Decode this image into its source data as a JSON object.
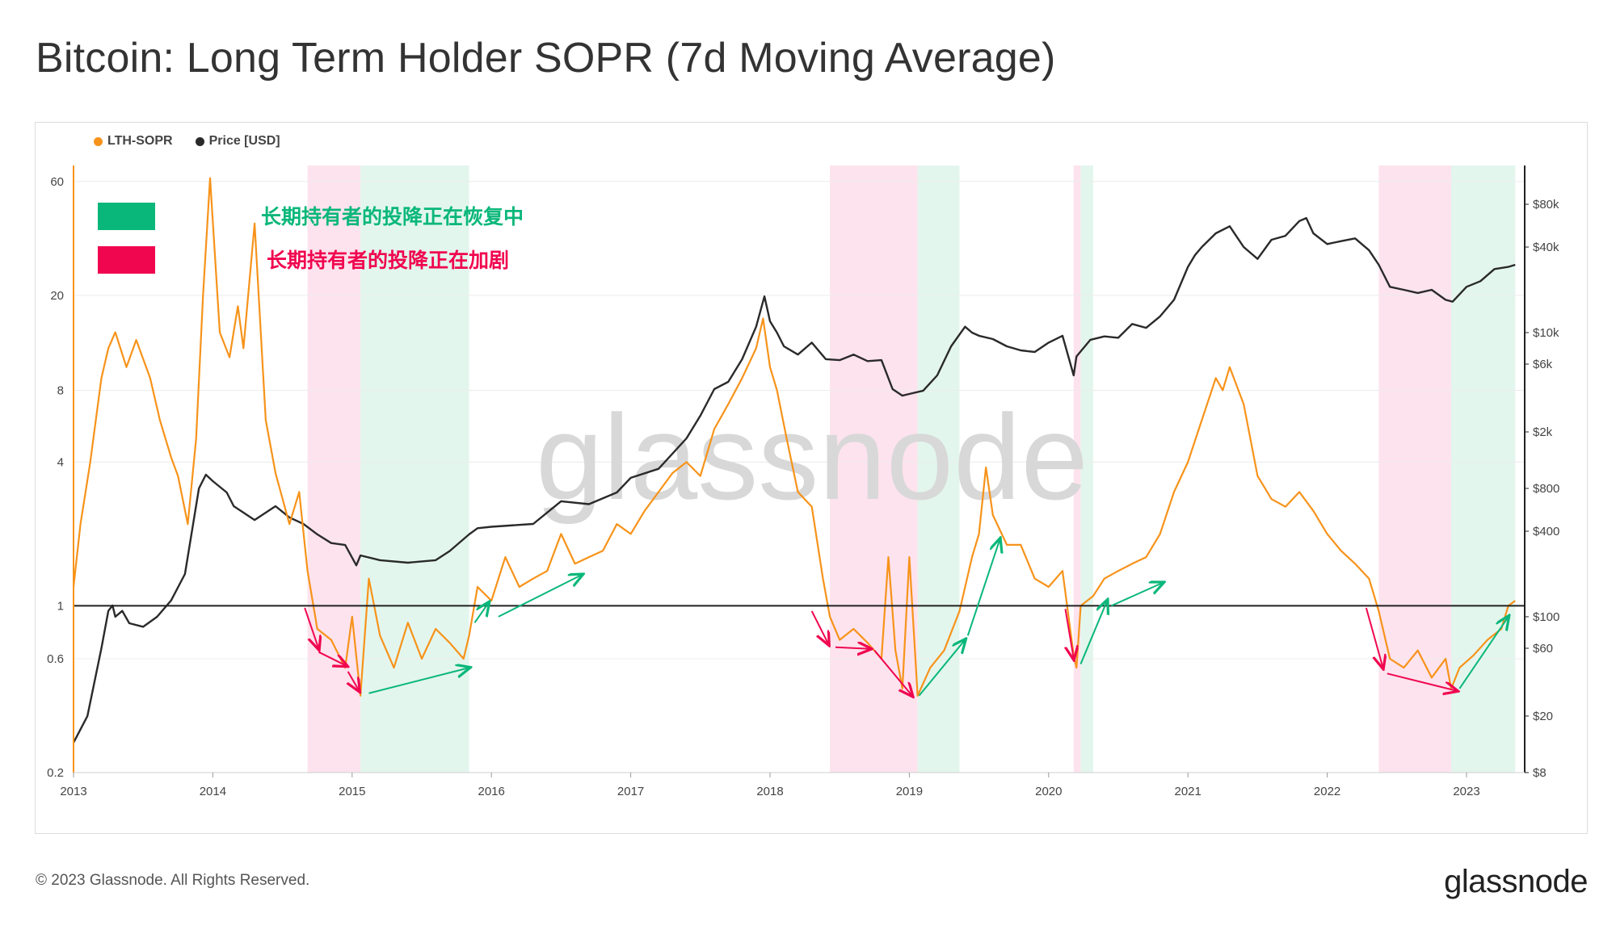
{
  "title": "Bitcoin: Long Term Holder SOPR (7d Moving Average)",
  "footer": "© 2023 Glassnode. All Rights Reserved.",
  "brand": "glassnode",
  "watermark": "glassnode",
  "colors": {
    "sopr": "#f7931a",
    "price": "#2a2a2a",
    "green": "#0ab77a",
    "red": "#f0064f",
    "green_band": "#e3f6ee",
    "red_band": "#fde3ee"
  },
  "annotations": [
    {
      "text": "长期持有者的投降正在恢复中",
      "color": "green"
    },
    {
      "text": "长期持有者的投降正在加剧",
      "color": "red"
    }
  ],
  "chart_data": {
    "type": "line",
    "legend": [
      "LTH-SOPR",
      "Price [USD]"
    ],
    "x_ticks": [
      "2013",
      "2014",
      "2015",
      "2016",
      "2017",
      "2018",
      "2019",
      "2020",
      "2021",
      "2022",
      "2023"
    ],
    "y_left_ticks": [
      "60",
      "20",
      "8",
      "4",
      "1",
      "0.6",
      "0.2"
    ],
    "y_right_ticks": [
      "$80k",
      "$40k",
      "$10k",
      "$6k",
      "$2k",
      "$800",
      "$400",
      "$100",
      "$60",
      "$20",
      "$8"
    ],
    "y_left_scale": "log",
    "y_right_scale": "log",
    "y_left_range": [
      0.2,
      70
    ],
    "y_right_range": [
      8,
      150000
    ],
    "x_range": [
      2013.0,
      2023.35
    ],
    "reference_line": 1,
    "bands": [
      {
        "from": 2014.68,
        "to": 2015.06,
        "kind": "red"
      },
      {
        "from": 2015.06,
        "to": 2015.84,
        "kind": "green"
      },
      {
        "from": 2018.43,
        "to": 2019.06,
        "kind": "red"
      },
      {
        "from": 2019.06,
        "to": 2019.36,
        "kind": "green"
      },
      {
        "from": 2020.18,
        "to": 2020.23,
        "kind": "red"
      },
      {
        "from": 2020.23,
        "to": 2020.32,
        "kind": "green"
      },
      {
        "from": 2022.37,
        "to": 2022.89,
        "kind": "red"
      },
      {
        "from": 2022.89,
        "to": 2023.35,
        "kind": "green"
      }
    ],
    "series": [
      {
        "name": "LTH-SOPR",
        "axis": "left",
        "color": "#f7931a",
        "x": [
          2013.0,
          2013.05,
          2013.12,
          2013.2,
          2013.25,
          2013.3,
          2013.38,
          2013.45,
          2013.55,
          2013.62,
          2013.7,
          2013.75,
          2013.82,
          2013.88,
          2013.93,
          2013.98,
          2014.05,
          2014.12,
          2014.18,
          2014.22,
          2014.3,
          2014.38,
          2014.45,
          2014.55,
          2014.62,
          2014.68,
          2014.75,
          2014.85,
          2014.95,
          2015.0,
          2015.06,
          2015.12,
          2015.2,
          2015.3,
          2015.4,
          2015.5,
          2015.6,
          2015.7,
          2015.8,
          2015.84,
          2015.9,
          2016.0,
          2016.1,
          2016.2,
          2016.3,
          2016.4,
          2016.5,
          2016.6,
          2016.7,
          2016.8,
          2016.9,
          2017.0,
          2017.1,
          2017.2,
          2017.3,
          2017.4,
          2017.5,
          2017.6,
          2017.7,
          2017.8,
          2017.9,
          2017.95,
          2018.0,
          2018.05,
          2018.12,
          2018.2,
          2018.3,
          2018.38,
          2018.43,
          2018.5,
          2018.6,
          2018.7,
          2018.8,
          2018.85,
          2018.9,
          2018.95,
          2019.0,
          2019.06,
          2019.15,
          2019.25,
          2019.36,
          2019.45,
          2019.5,
          2019.55,
          2019.6,
          2019.7,
          2019.8,
          2019.9,
          2020.0,
          2020.1,
          2020.18,
          2020.2,
          2020.23,
          2020.32,
          2020.4,
          2020.5,
          2020.6,
          2020.7,
          2020.8,
          2020.9,
          2021.0,
          2021.1,
          2021.2,
          2021.25,
          2021.3,
          2021.4,
          2021.5,
          2021.6,
          2021.7,
          2021.8,
          2021.9,
          2022.0,
          2022.1,
          2022.2,
          2022.3,
          2022.37,
          2022.45,
          2022.55,
          2022.65,
          2022.75,
          2022.85,
          2022.89,
          2022.95,
          2023.05,
          2023.15,
          2023.25,
          2023.3,
          2023.35
        ],
        "values": [
          1.2,
          2.2,
          4.0,
          9.0,
          12.0,
          14.0,
          10.0,
          13.0,
          9.0,
          6.0,
          4.2,
          3.5,
          2.2,
          5.0,
          20.0,
          62.0,
          14.0,
          11.0,
          18.0,
          12.0,
          40.0,
          6.0,
          3.6,
          2.2,
          3.0,
          1.4,
          0.8,
          0.72,
          0.55,
          0.9,
          0.42,
          1.3,
          0.75,
          0.55,
          0.85,
          0.6,
          0.8,
          0.7,
          0.6,
          0.75,
          1.2,
          1.05,
          1.6,
          1.2,
          1.3,
          1.4,
          2.0,
          1.5,
          1.6,
          1.7,
          2.2,
          2.0,
          2.5,
          3.0,
          3.6,
          4.0,
          3.5,
          5.5,
          7.0,
          9.0,
          12.0,
          16.0,
          10.0,
          8.0,
          5.0,
          3.0,
          2.6,
          1.3,
          0.9,
          0.72,
          0.8,
          0.7,
          0.6,
          1.6,
          0.65,
          0.45,
          1.6,
          0.42,
          0.55,
          0.65,
          0.95,
          1.6,
          2.0,
          3.8,
          2.4,
          1.8,
          1.8,
          1.3,
          1.2,
          1.4,
          0.62,
          0.55,
          1.0,
          1.1,
          1.3,
          1.4,
          1.5,
          1.6,
          2.0,
          3.0,
          4.0,
          6.0,
          9.0,
          8.0,
          10.0,
          7.0,
          3.5,
          2.8,
          2.6,
          3.0,
          2.5,
          2.0,
          1.7,
          1.5,
          1.3,
          0.95,
          0.6,
          0.55,
          0.65,
          0.5,
          0.6,
          0.45,
          0.55,
          0.62,
          0.72,
          0.8,
          1.0,
          1.05
        ]
      },
      {
        "name": "Price [USD]",
        "axis": "right",
        "color": "#2a2a2a",
        "x": [
          2013.0,
          2013.1,
          2013.2,
          2013.25,
          2013.28,
          2013.3,
          2013.35,
          2013.4,
          2013.5,
          2013.6,
          2013.7,
          2013.8,
          2013.9,
          2013.95,
          2014.0,
          2014.1,
          2014.15,
          2014.3,
          2014.45,
          2014.55,
          2014.65,
          2014.75,
          2014.85,
          2014.95,
          2015.03,
          2015.06,
          2015.2,
          2015.4,
          2015.6,
          2015.7,
          2015.84,
          2015.9,
          2016.0,
          2016.3,
          2016.5,
          2016.7,
          2016.9,
          2017.0,
          2017.2,
          2017.4,
          2017.5,
          2017.6,
          2017.7,
          2017.8,
          2017.9,
          2017.96,
          2018.0,
          2018.05,
          2018.1,
          2018.2,
          2018.3,
          2018.4,
          2018.5,
          2018.6,
          2018.7,
          2018.8,
          2018.88,
          2018.95,
          2019.0,
          2019.1,
          2019.2,
          2019.3,
          2019.4,
          2019.45,
          2019.5,
          2019.6,
          2019.7,
          2019.8,
          2019.9,
          2020.0,
          2020.1,
          2020.18,
          2020.2,
          2020.3,
          2020.4,
          2020.5,
          2020.6,
          2020.7,
          2020.8,
          2020.9,
          2021.0,
          2021.05,
          2021.1,
          2021.2,
          2021.3,
          2021.4,
          2021.5,
          2021.6,
          2021.7,
          2021.8,
          2021.85,
          2021.9,
          2022.0,
          2022.1,
          2022.2,
          2022.3,
          2022.37,
          2022.45,
          2022.55,
          2022.65,
          2022.75,
          2022.85,
          2022.9,
          2023.0,
          2023.1,
          2023.2,
          2023.3,
          2023.35
        ],
        "values": [
          13,
          20,
          60,
          110,
          120,
          100,
          110,
          90,
          85,
          100,
          130,
          200,
          800,
          1000,
          900,
          750,
          600,
          480,
          600,
          500,
          450,
          380,
          330,
          320,
          230,
          270,
          250,
          240,
          250,
          290,
          380,
          420,
          430,
          450,
          650,
          620,
          750,
          950,
          1100,
          1800,
          2600,
          4000,
          4500,
          6500,
          11000,
          18000,
          12000,
          10000,
          8000,
          7000,
          8500,
          6500,
          6400,
          7000,
          6300,
          6400,
          4000,
          3600,
          3700,
          3900,
          5000,
          8000,
          11000,
          10000,
          9500,
          9000,
          8000,
          7500,
          7300,
          8500,
          9500,
          5000,
          6800,
          8900,
          9400,
          9200,
          11500,
          10800,
          13000,
          17000,
          29000,
          35000,
          40000,
          50000,
          56000,
          40000,
          33000,
          45000,
          48000,
          61000,
          64000,
          50000,
          42000,
          44000,
          46000,
          38000,
          30000,
          21000,
          20000,
          19000,
          20000,
          17000,
          16500,
          21000,
          23000,
          28000,
          29000,
          30000
        ]
      }
    ]
  }
}
